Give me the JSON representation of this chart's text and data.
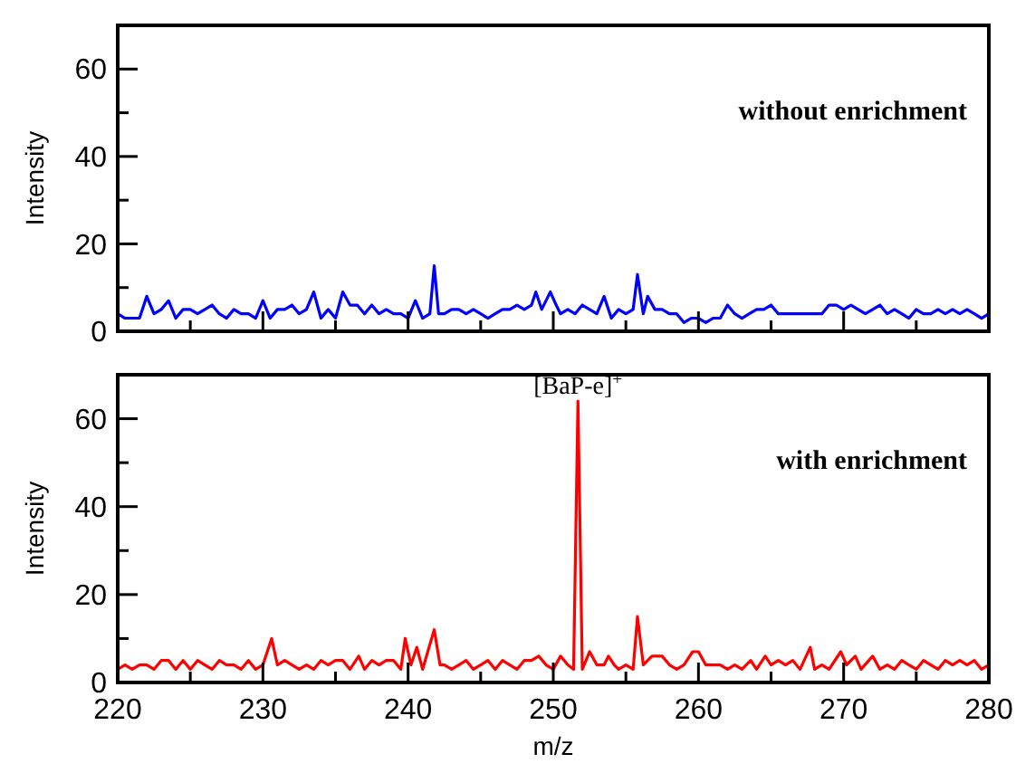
{
  "chart_data": [
    {
      "type": "line",
      "ylabel": "Intensity",
      "xlim": [
        220,
        280
      ],
      "xticks": [
        220,
        {
          "value": 225,
          "label": null
        },
        230,
        {
          "value": 235,
          "label": null
        },
        240,
        {
          "value": 245,
          "label": null
        },
        250,
        {
          "value": 255,
          "label": null
        },
        260,
        {
          "value": 265,
          "label": null
        },
        270,
        {
          "value": 275,
          "label": null
        },
        280
      ],
      "ylim": [
        0,
        70
      ],
      "yticks": [
        0,
        {
          "value": 10,
          "label": null
        },
        20,
        {
          "value": 30,
          "label": null
        },
        40,
        {
          "value": 50,
          "label": null
        },
        60
      ],
      "tick_labels": "y",
      "annotations": [
        "without enrichment"
      ],
      "series": [
        {
          "color": "#0000ff",
          "x": [
            220,
            220.5,
            221,
            221.5,
            222,
            222.5,
            223,
            223.5,
            224,
            224.5,
            225,
            225.5,
            226,
            226.5,
            227,
            227.5,
            228,
            228.5,
            229,
            229.5,
            230,
            230.5,
            231,
            231.5,
            232,
            232.5,
            233,
            233.5,
            234,
            234.5,
            235,
            235.5,
            236,
            236.5,
            237,
            237.5,
            238,
            238.5,
            239,
            239.5,
            240,
            240.5,
            241,
            241.5,
            241.8,
            242.1,
            242.5,
            243,
            243.5,
            244,
            244.5,
            245,
            245.5,
            246,
            246.5,
            247,
            247.5,
            248,
            248.5,
            248.8,
            249.2,
            249.8,
            250.2,
            250.5,
            251,
            251.5,
            252,
            252.5,
            253,
            253.5,
            254,
            254.5,
            255,
            255.5,
            255.8,
            256.2,
            256.5,
            257,
            257.5,
            258,
            258.5,
            259,
            259.5,
            260,
            260.5,
            261,
            261.5,
            262,
            262.5,
            263,
            263.5,
            264,
            264.5,
            265,
            265.5,
            266,
            266.5,
            267,
            267.5,
            268,
            268.5,
            269,
            269.5,
            270,
            270.5,
            271,
            271.5,
            272,
            272.5,
            273,
            273.5,
            274,
            274.5,
            275,
            275.5,
            276,
            276.5,
            277,
            277.5,
            278,
            278.5,
            279,
            279.5,
            280
          ],
          "values": [
            4,
            3,
            3,
            3,
            8,
            4,
            5,
            7,
            3,
            5,
            5,
            4,
            5,
            6,
            4,
            3,
            5,
            4,
            4,
            3,
            7,
            3,
            5,
            5,
            6,
            4,
            5,
            9,
            3,
            5,
            3,
            9,
            6,
            6,
            4,
            6,
            4,
            5,
            4,
            4,
            3,
            7,
            3,
            4,
            15,
            4,
            4,
            5,
            5,
            4,
            5,
            4,
            3,
            4,
            5,
            5,
            6,
            5,
            6,
            9,
            5,
            9,
            6,
            4,
            5,
            4,
            6,
            5,
            4,
            8,
            3,
            5,
            4,
            5,
            13,
            4,
            8,
            5,
            5,
            4,
            4,
            2,
            3,
            3,
            2,
            3,
            3,
            6,
            4,
            3,
            4,
            5,
            5,
            6,
            4,
            4,
            4,
            4,
            4,
            4,
            4,
            6,
            6,
            5,
            6,
            5,
            4,
            5,
            6,
            4,
            5,
            4,
            3,
            5,
            4,
            4,
            5,
            4,
            5,
            4,
            5,
            4,
            3,
            4
          ]
        }
      ]
    },
    {
      "type": "line",
      "xlabel": "m/z",
      "ylabel": "Intensity",
      "xlim": [
        220,
        280
      ],
      "xticks": [
        220,
        {
          "value": 225,
          "label": null
        },
        230,
        {
          "value": 235,
          "label": null
        },
        240,
        {
          "value": 245,
          "label": null
        },
        250,
        {
          "value": 255,
          "label": null
        },
        260,
        {
          "value": 265,
          "label": null
        },
        270,
        {
          "value": 275,
          "label": null
        },
        280
      ],
      "ylim": [
        0,
        70
      ],
      "yticks": [
        0,
        {
          "value": 10,
          "label": null
        },
        20,
        {
          "value": 30,
          "label": null
        },
        40,
        {
          "value": 50,
          "label": null
        },
        60
      ],
      "annotations": [
        {
          "text": "[BaP-e]$^{+}$",
          "x": 251.7,
          "y": 64
        },
        "with enrichment"
      ],
      "series": [
        {
          "color": "#ff0000",
          "x": [
            220,
            220.5,
            221,
            221.5,
            222,
            222.5,
            223,
            223.5,
            224,
            224.5,
            225,
            225.5,
            226,
            226.5,
            227,
            227.5,
            228,
            228.5,
            229,
            229.5,
            230,
            230.6,
            231,
            231.5,
            232,
            232.5,
            233,
            233.5,
            234,
            234.5,
            235,
            235.5,
            236,
            236.6,
            237,
            237.5,
            238,
            238.5,
            239,
            239.5,
            239.8,
            240.2,
            240.6,
            241,
            241.8,
            242.2,
            242.5,
            243,
            243.5,
            244,
            244.5,
            245,
            245.5,
            246,
            246.5,
            247,
            247.5,
            248,
            248.5,
            249,
            249.5,
            250,
            250.5,
            251,
            251.4,
            251.7,
            252,
            252.5,
            253,
            253.5,
            253.8,
            254.2,
            254.5,
            255,
            255.5,
            255.8,
            256.2,
            256.8,
            257.5,
            258,
            258.5,
            259,
            259.6,
            260,
            260.5,
            261,
            261.5,
            262,
            262.5,
            263,
            263.6,
            264,
            264.6,
            265,
            265.5,
            266,
            266.5,
            267,
            267.7,
            268,
            268.5,
            269,
            269.8,
            270.2,
            270.8,
            271.2,
            272,
            272.5,
            273,
            273.5,
            274,
            274.5,
            275,
            275.5,
            276,
            276.5,
            277,
            277.5,
            278,
            278.5,
            279,
            279.5,
            280
          ],
          "values": [
            3,
            4,
            3,
            4,
            4,
            3,
            5,
            5,
            3,
            5,
            3,
            5,
            4,
            3,
            5,
            4,
            4,
            3,
            5,
            3,
            4,
            10,
            4,
            5,
            4,
            3,
            4,
            3,
            5,
            4,
            5,
            5,
            3,
            6,
            3,
            5,
            4,
            5,
            5,
            3,
            10,
            4,
            8,
            3,
            12,
            4,
            4,
            3,
            4,
            5,
            3,
            4,
            5,
            3,
            5,
            4,
            3,
            5,
            5,
            6,
            4,
            3,
            6,
            4,
            3,
            64,
            3,
            7,
            4,
            4,
            6,
            4,
            3,
            4,
            3,
            15,
            4,
            6,
            6,
            4,
            3,
            4,
            7,
            7,
            4,
            4,
            4,
            3,
            4,
            3,
            5,
            3,
            6,
            4,
            5,
            4,
            5,
            3,
            8,
            3,
            4,
            3,
            7,
            4,
            6,
            3,
            6,
            3,
            4,
            3,
            5,
            4,
            3,
            5,
            4,
            3,
            5,
            4,
            5,
            4,
            5,
            3,
            4
          ]
        }
      ]
    }
  ]
}
